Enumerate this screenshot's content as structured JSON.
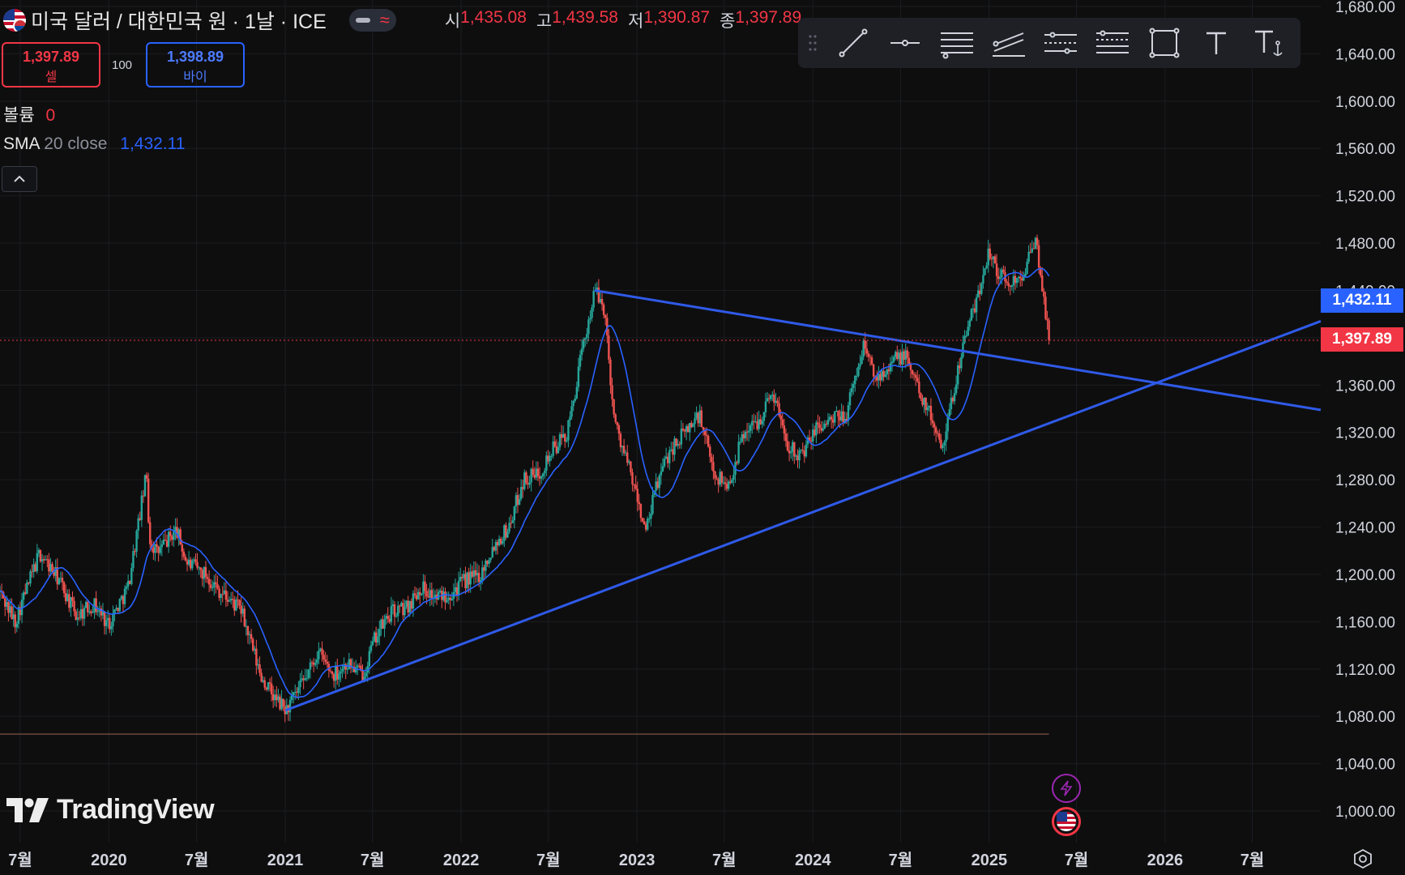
{
  "header": {
    "symbol_title": "미국 달러 / 대한민국 원 · 1날 · ICE",
    "flag_icon": "us-kr-flag-icon",
    "ohlc": {
      "open_label": "시",
      "open": "1,435.08",
      "high_label": "고",
      "high": "1,439.58",
      "low_label": "저",
      "low": "1,390.87",
      "close_label": "종",
      "close": "1,397.89"
    }
  },
  "trade": {
    "sell_price": "1,397.89",
    "sell_label": "셀",
    "spread": "100",
    "buy_price": "1,398.89",
    "buy_label": "바이"
  },
  "indicators": {
    "volume_label": "볼륨",
    "volume_value": "0",
    "sma_name": "SMA",
    "sma_params": "20 close",
    "sma_value": "1,432.11"
  },
  "toolbar": {
    "tools": [
      "trend-line-icon",
      "horizontal-ray-icon",
      "parallel-channel-icon",
      "regression-trend-icon",
      "flat-top-bottom-icon",
      "disjoint-channel-icon",
      "rectangle-icon",
      "text-icon",
      "anchored-text-icon"
    ]
  },
  "watermark": {
    "text": "TradingView"
  },
  "price_badges": {
    "sma": "1,432.11",
    "last": "1,397.89"
  },
  "colors": {
    "up": "#26a69a",
    "down": "#ef5350",
    "sma": "#2962ff",
    "trendline": "#2f5ae8",
    "sell": "#f23645",
    "buy": "#2962ff",
    "background": "#0e0e0f",
    "grid": "#1c1d21"
  },
  "chart_data": {
    "type": "candlestick",
    "y_axis_ticks": [
      1000,
      1040,
      1080,
      1120,
      1160,
      1200,
      1240,
      1280,
      1320,
      1360,
      1400,
      1440,
      1480,
      1520,
      1560,
      1600,
      1640,
      1680
    ],
    "y_tick_labels": [
      "1,000.00",
      "1,040.00",
      "1,080.00",
      "1,120.00",
      "1,160.00",
      "1,200.00",
      "1,240.00",
      "1,280.00",
      "1,320.00",
      "1,360.00",
      "1,400.00",
      "1,440.00",
      "1,480.00",
      "1,520.00",
      "1,560.00",
      "1,600.00",
      "1,640.00",
      "1,680.00"
    ],
    "ylim": [
      980,
      1720
    ],
    "x_labels": [
      {
        "date": "2019-07-01",
        "label": "7월"
      },
      {
        "date": "2020-01-01",
        "label": "2020"
      },
      {
        "date": "2020-07-01",
        "label": "7월"
      },
      {
        "date": "2021-01-01",
        "label": "2021"
      },
      {
        "date": "2021-07-01",
        "label": "7월"
      },
      {
        "date": "2022-01-01",
        "label": "2022"
      },
      {
        "date": "2022-07-01",
        "label": "7월"
      },
      {
        "date": "2023-01-01",
        "label": "2023"
      },
      {
        "date": "2023-07-01",
        "label": "7월"
      },
      {
        "date": "2024-01-01",
        "label": "2024"
      },
      {
        "date": "2024-07-01",
        "label": "7월"
      },
      {
        "date": "2025-01-01",
        "label": "2025"
      },
      {
        "date": "2025-07-01",
        "label": "7월"
      },
      {
        "date": "2026-01-01",
        "label": "2026"
      },
      {
        "date": "2026-07-01",
        "label": "7월"
      }
    ],
    "xlim": [
      "2019-05-20",
      "2026-11-20"
    ],
    "price_path": [
      [
        "2019-05-20",
        1185
      ],
      [
        "2019-06-20",
        1160
      ],
      [
        "2019-08-10",
        1218
      ],
      [
        "2019-09-20",
        1195
      ],
      [
        "2019-10-25",
        1165
      ],
      [
        "2019-12-01",
        1175
      ],
      [
        "2019-12-31",
        1158
      ],
      [
        "2020-02-10",
        1190
      ],
      [
        "2020-03-19",
        1285
      ],
      [
        "2020-03-25",
        1230
      ],
      [
        "2020-04-10",
        1218
      ],
      [
        "2020-05-20",
        1238
      ],
      [
        "2020-06-10",
        1210
      ],
      [
        "2020-07-20",
        1200
      ],
      [
        "2020-08-20",
        1185
      ],
      [
        "2020-10-01",
        1170
      ],
      [
        "2020-11-10",
        1115
      ],
      [
        "2020-12-10",
        1095
      ],
      [
        "2021-01-03",
        1085
      ],
      [
        "2021-02-10",
        1110
      ],
      [
        "2021-03-10",
        1135
      ],
      [
        "2021-04-10",
        1115
      ],
      [
        "2021-05-10",
        1125
      ],
      [
        "2021-06-10",
        1115
      ],
      [
        "2021-07-10",
        1150
      ],
      [
        "2021-08-10",
        1168
      ],
      [
        "2021-09-10",
        1172
      ],
      [
        "2021-10-10",
        1190
      ],
      [
        "2021-11-10",
        1180
      ],
      [
        "2021-12-10",
        1185
      ],
      [
        "2022-01-10",
        1195
      ],
      [
        "2022-02-10",
        1200
      ],
      [
        "2022-03-10",
        1225
      ],
      [
        "2022-04-10",
        1240
      ],
      [
        "2022-05-10",
        1280
      ],
      [
        "2022-06-10",
        1285
      ],
      [
        "2022-07-10",
        1305
      ],
      [
        "2022-08-10",
        1320
      ],
      [
        "2022-09-10",
        1390
      ],
      [
        "2022-10-05",
        1440
      ],
      [
        "2022-10-25",
        1425
      ],
      [
        "2022-11-15",
        1330
      ],
      [
        "2022-12-15",
        1290
      ],
      [
        "2023-01-20",
        1235
      ],
      [
        "2023-02-10",
        1275
      ],
      [
        "2023-03-10",
        1305
      ],
      [
        "2023-04-10",
        1320
      ],
      [
        "2023-05-10",
        1335
      ],
      [
        "2023-06-10",
        1285
      ],
      [
        "2023-07-10",
        1275
      ],
      [
        "2023-08-10",
        1320
      ],
      [
        "2023-09-10",
        1330
      ],
      [
        "2023-10-10",
        1355
      ],
      [
        "2023-11-10",
        1310
      ],
      [
        "2023-12-10",
        1300
      ],
      [
        "2024-01-10",
        1325
      ],
      [
        "2024-02-10",
        1330
      ],
      [
        "2024-03-10",
        1335
      ],
      [
        "2024-04-16",
        1395
      ],
      [
        "2024-05-10",
        1365
      ],
      [
        "2024-06-10",
        1380
      ],
      [
        "2024-07-10",
        1385
      ],
      [
        "2024-08-10",
        1355
      ],
      [
        "2024-09-25",
        1310
      ],
      [
        "2024-10-10",
        1335
      ],
      [
        "2024-11-10",
        1400
      ],
      [
        "2024-12-10",
        1435
      ],
      [
        "2024-12-30",
        1475
      ],
      [
        "2025-01-20",
        1455
      ],
      [
        "2025-02-10",
        1445
      ],
      [
        "2025-03-10",
        1455
      ],
      [
        "2025-04-09",
        1480
      ],
      [
        "2025-04-25",
        1430
      ],
      [
        "2025-05-05",
        1397.89
      ]
    ],
    "sma20_label": "SMA 20 close",
    "trendlines": [
      {
        "name": "descending-resistance",
        "start": [
          "2022-10-05",
          1440
        ],
        "end": [
          "2026-11-20",
          1339
        ]
      },
      {
        "name": "ascending-support",
        "start": [
          "2021-01-01",
          1085
        ],
        "end": [
          "2026-11-20",
          1414
        ]
      }
    ],
    "horizontal_line": {
      "price": 1065,
      "from": "2019-05-20",
      "to": "2025-05-05"
    },
    "last_price": 1397.89,
    "sma_last": 1432.11
  }
}
